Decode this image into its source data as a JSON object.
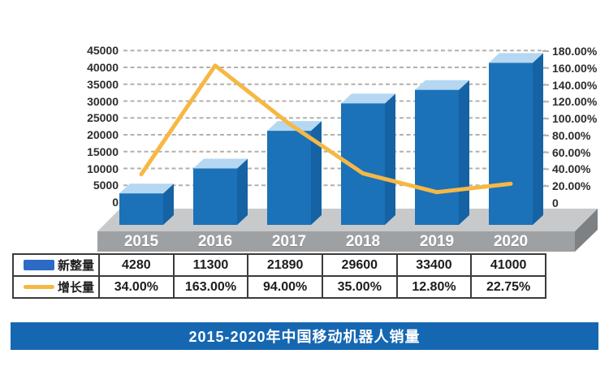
{
  "chart_data": {
    "type": "bar",
    "subtype": "3d-column-with-line-overlay",
    "title": "2015-2020年中国移动机器人销量",
    "categories": [
      "2015",
      "2016",
      "2017",
      "2018",
      "2019",
      "2020"
    ],
    "series": [
      {
        "name": "新整量",
        "type": "bar",
        "values": [
          4280,
          11300,
          21890,
          29600,
          33400,
          41000
        ],
        "value_labels": [
          "4280",
          "11300",
          "21890",
          "29600",
          "33400",
          "41000"
        ]
      },
      {
        "name": "增长量",
        "type": "line",
        "values": [
          34.0,
          163.0,
          94.0,
          35.0,
          12.8,
          22.75
        ],
        "value_labels": [
          "34.00%",
          "163.00%",
          "94.00%",
          "35.00%",
          "12.80%",
          "22.75%"
        ]
      }
    ],
    "left_axis": {
      "min": 0,
      "max": 45000,
      "step": 5000,
      "ticks": [
        "45000",
        "40000",
        "35000",
        "30000",
        "25000",
        "20000",
        "15000",
        "10000",
        "5000",
        "0"
      ]
    },
    "right_axis": {
      "min": 0,
      "max": 180,
      "step": 20,
      "ticks": [
        "180.00%",
        "160.00%",
        "140.00%",
        "120.00%",
        "100.00%",
        "80.00%",
        "60.00%",
        "40.00%",
        "20.00%",
        "0"
      ]
    },
    "grid": "dashed-horizontal",
    "legend_position": "table-left-column"
  },
  "banner": {
    "title": "2015-2020年中国移动机器人销量"
  },
  "colors": {
    "bar_front": "#1b72b8",
    "bar_top": "#b5d7f2",
    "bar_side": "#1563a4",
    "line": "#f6b844",
    "grid": "#b4b0ac",
    "axis_text": "#2e2d2b",
    "platform_top": "#c8c9cb",
    "platform_front": "#9ea1a4",
    "platform_side": "#7e8184",
    "year_text": "#ffffff",
    "table_border": "#3b3b3b",
    "legend_bar_swatch": "#2c6ac5",
    "legend_line_swatch": "#f6b844",
    "banner_bg": "#1667b2",
    "banner_text": "#ffffff",
    "background": "#ffffff"
  }
}
